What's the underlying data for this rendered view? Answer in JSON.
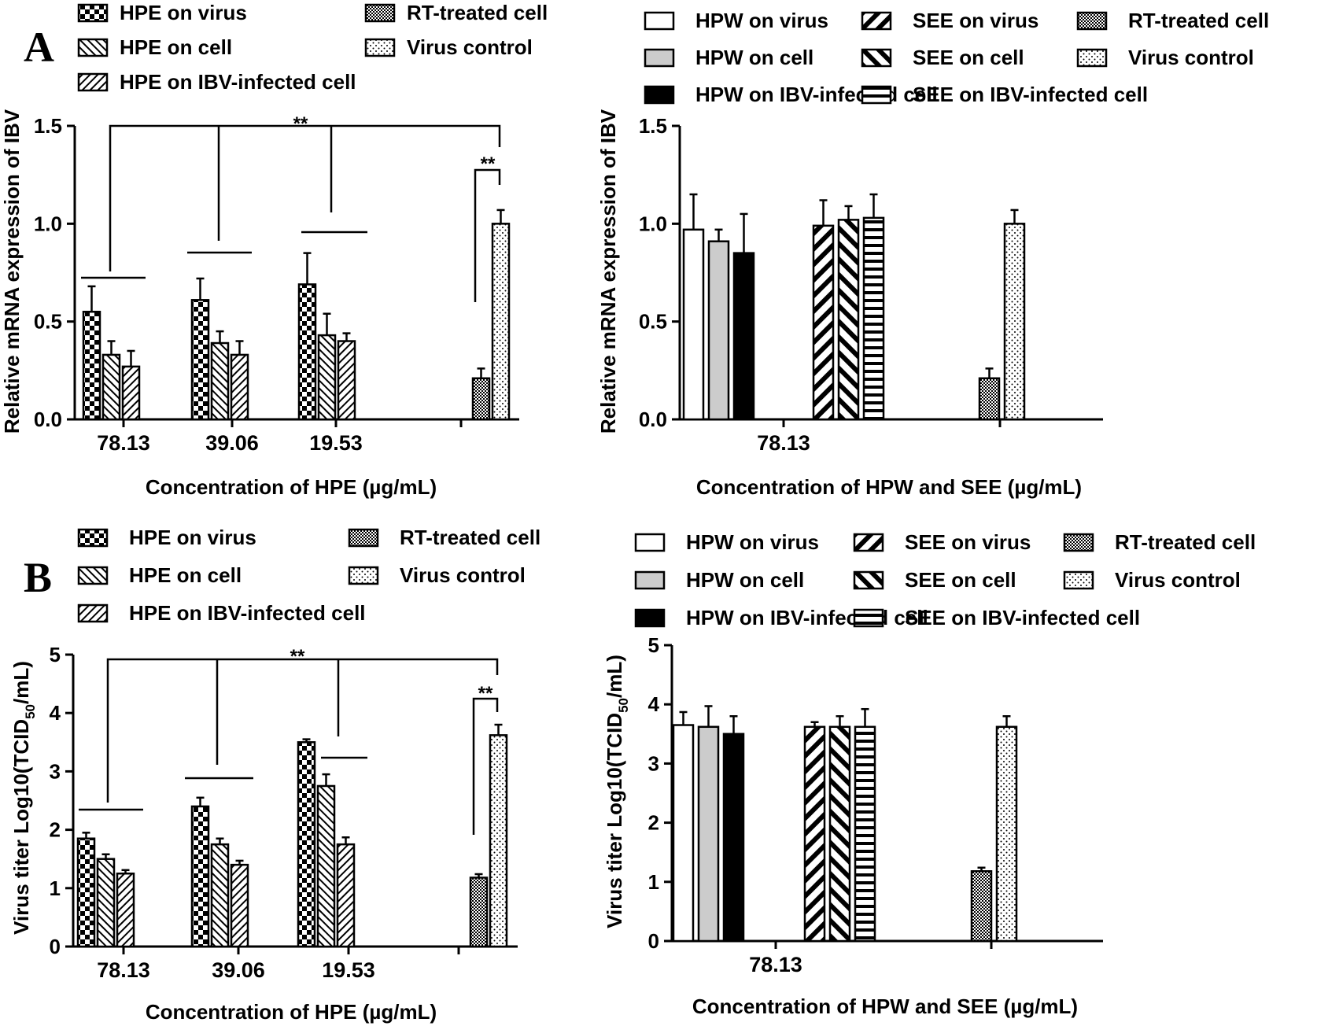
{
  "palette": {
    "ink": "#000000",
    "gray_fill": "#cccccc",
    "background": "#ffffff"
  },
  "chart_data": [
    {
      "id": "A-left",
      "panel_label": "A",
      "type": "bar",
      "ylabel": "Relative mRNA expression of IBV",
      "xlabel": "Concentration of HPE  (µg/mL)",
      "ylim": [
        0,
        1.5
      ],
      "yticks": [
        0.0,
        0.5,
        1.0,
        1.5
      ],
      "ytick_labels": [
        "0.0",
        "0.5",
        "1.0",
        "1.5"
      ],
      "categories": [
        "78.13",
        "39.06",
        "19.53",
        ""
      ],
      "series": [
        {
          "name": "HPE on virus",
          "pattern": "checker",
          "values": [
            0.55,
            0.61,
            0.69,
            null
          ],
          "errors": [
            0.13,
            0.11,
            0.16,
            null
          ]
        },
        {
          "name": "HPE on cell",
          "pattern": "diag-fine",
          "values": [
            0.33,
            0.39,
            0.43,
            null
          ],
          "errors": [
            0.07,
            0.06,
            0.11,
            null
          ]
        },
        {
          "name": "HPE on IBV-infected cell",
          "pattern": "diag-back",
          "values": [
            0.27,
            0.33,
            0.4,
            null
          ],
          "errors": [
            0.08,
            0.07,
            0.04,
            null
          ]
        },
        {
          "name": "RT-treated cell",
          "pattern": "fine-check",
          "values": [
            null,
            null,
            null,
            0.21
          ],
          "errors": [
            null,
            null,
            null,
            0.05
          ]
        },
        {
          "name": "Virus control",
          "pattern": "dots",
          "values": [
            null,
            null,
            null,
            1.0
          ],
          "errors": [
            null,
            null,
            null,
            0.07
          ]
        }
      ],
      "legend": {
        "columns": 2
      },
      "annotations": [
        "**",
        "**"
      ]
    },
    {
      "id": "A-right",
      "type": "bar",
      "ylabel": "Relative mRNA expression of IBV",
      "xlabel": "Concentration of HPW and SEE  (µg/mL)",
      "ylim": [
        0,
        1.5
      ],
      "yticks": [
        0.0,
        0.5,
        1.0,
        1.5
      ],
      "ytick_labels": [
        "0.0",
        "0.5",
        "1.0",
        "1.5"
      ],
      "categories": [
        "78.13",
        "",
        ""
      ],
      "series": [
        {
          "name": "HPW on virus",
          "pattern": "white",
          "values": [
            0.97,
            null,
            null
          ],
          "errors": [
            0.18,
            null,
            null
          ]
        },
        {
          "name": "HPW on cell",
          "pattern": "gray",
          "values": [
            0.91,
            null,
            null
          ],
          "errors": [
            0.06,
            null,
            null
          ]
        },
        {
          "name": "HPW on IBV-infected cell",
          "pattern": "black",
          "values": [
            0.85,
            null,
            null
          ],
          "errors": [
            0.2,
            null,
            null
          ]
        },
        {
          "name": "SEE on virus",
          "pattern": "diag-thick-back",
          "values": [
            null,
            0.99,
            null
          ],
          "errors": [
            null,
            0.13,
            null
          ]
        },
        {
          "name": "SEE on cell",
          "pattern": "diag-thick",
          "values": [
            null,
            1.02,
            null
          ],
          "errors": [
            null,
            0.07,
            null
          ]
        },
        {
          "name": "SEE on IBV-infected cell",
          "pattern": "hstripe",
          "values": [
            null,
            1.03,
            null
          ],
          "errors": [
            null,
            0.12,
            null
          ]
        },
        {
          "name": "RT-treated cell",
          "pattern": "fine-check",
          "values": [
            null,
            null,
            0.21
          ],
          "errors": [
            null,
            null,
            0.05
          ]
        },
        {
          "name": "Virus control",
          "pattern": "dots",
          "values": [
            null,
            null,
            1.0
          ],
          "errors": [
            null,
            null,
            0.07
          ]
        }
      ],
      "legend": {
        "columns": 3
      }
    },
    {
      "id": "B-left",
      "panel_label": "B",
      "type": "bar",
      "ylabel_main": "Virus titer Log10(TCID",
      "ylabel_sub": "50",
      "ylabel_tail": "/mL)",
      "xlabel": "Concentration of HPE  (µg/mL)",
      "ylim": [
        0,
        5
      ],
      "yticks": [
        0,
        1,
        2,
        3,
        4,
        5
      ],
      "ytick_labels": [
        "0",
        "1",
        "2",
        "3",
        "4",
        "5"
      ],
      "categories": [
        "78.13",
        "39.06",
        "19.53",
        ""
      ],
      "series": [
        {
          "name": "HPE on virus",
          "pattern": "checker",
          "values": [
            1.85,
            2.4,
            3.5,
            null
          ],
          "errors": [
            0.1,
            0.15,
            0.05,
            null
          ]
        },
        {
          "name": "HPE on cell",
          "pattern": "diag-fine",
          "values": [
            1.5,
            1.75,
            2.75,
            null
          ],
          "errors": [
            0.08,
            0.1,
            0.2,
            null
          ]
        },
        {
          "name": "HPE on IBV-infected cell",
          "pattern": "diag-back",
          "values": [
            1.25,
            1.4,
            1.75,
            null
          ],
          "errors": [
            0.06,
            0.07,
            0.12,
            null
          ]
        },
        {
          "name": "RT-treated cell",
          "pattern": "fine-check",
          "values": [
            null,
            null,
            null,
            1.18
          ],
          "errors": [
            null,
            null,
            null,
            0.06
          ]
        },
        {
          "name": "Virus control",
          "pattern": "dots",
          "values": [
            null,
            null,
            null,
            3.62
          ],
          "errors": [
            null,
            null,
            null,
            0.18
          ]
        }
      ],
      "legend": {
        "columns": 2
      },
      "annotations": [
        "**",
        "**"
      ]
    },
    {
      "id": "B-right",
      "type": "bar",
      "ylabel_main": "Virus titer Log10(TCID",
      "ylabel_sub": "50",
      "ylabel_tail": "/mL)",
      "xlabel": "Concentration of HPW and SEE  (µg/mL)",
      "ylim": [
        0,
        5
      ],
      "yticks": [
        0,
        1,
        2,
        3,
        4,
        5
      ],
      "ytick_labels": [
        "0",
        "1",
        "2",
        "3",
        "4",
        "5"
      ],
      "categories": [
        "78.13",
        "",
        ""
      ],
      "series": [
        {
          "name": "HPW on virus",
          "pattern": "white",
          "values": [
            3.65,
            null,
            null
          ],
          "errors": [
            0.22,
            null,
            null
          ]
        },
        {
          "name": "HPW on cell",
          "pattern": "gray",
          "values": [
            3.62,
            null,
            null
          ],
          "errors": [
            0.35,
            null,
            null
          ]
        },
        {
          "name": "HPW on IBV-infected cell",
          "pattern": "black",
          "values": [
            3.5,
            null,
            null
          ],
          "errors": [
            0.3,
            null,
            null
          ]
        },
        {
          "name": "SEE on virus",
          "pattern": "diag-thick-back",
          "values": [
            null,
            3.62,
            null
          ],
          "errors": [
            null,
            0.08,
            null
          ]
        },
        {
          "name": "SEE on cell",
          "pattern": "diag-thick",
          "values": [
            null,
            3.62,
            null
          ],
          "errors": [
            null,
            0.18,
            null
          ]
        },
        {
          "name": "SEE on IBV-infected cell",
          "pattern": "hstripe",
          "values": [
            null,
            3.62,
            null
          ],
          "errors": [
            null,
            0.3,
            null
          ]
        },
        {
          "name": "RT-treated cell",
          "pattern": "fine-check",
          "values": [
            null,
            null,
            1.18
          ],
          "errors": [
            null,
            null,
            0.06
          ]
        },
        {
          "name": "Virus control",
          "pattern": "dots",
          "values": [
            null,
            null,
            3.62
          ],
          "errors": [
            null,
            null,
            0.18
          ]
        }
      ],
      "legend": {
        "columns": 3
      }
    }
  ]
}
